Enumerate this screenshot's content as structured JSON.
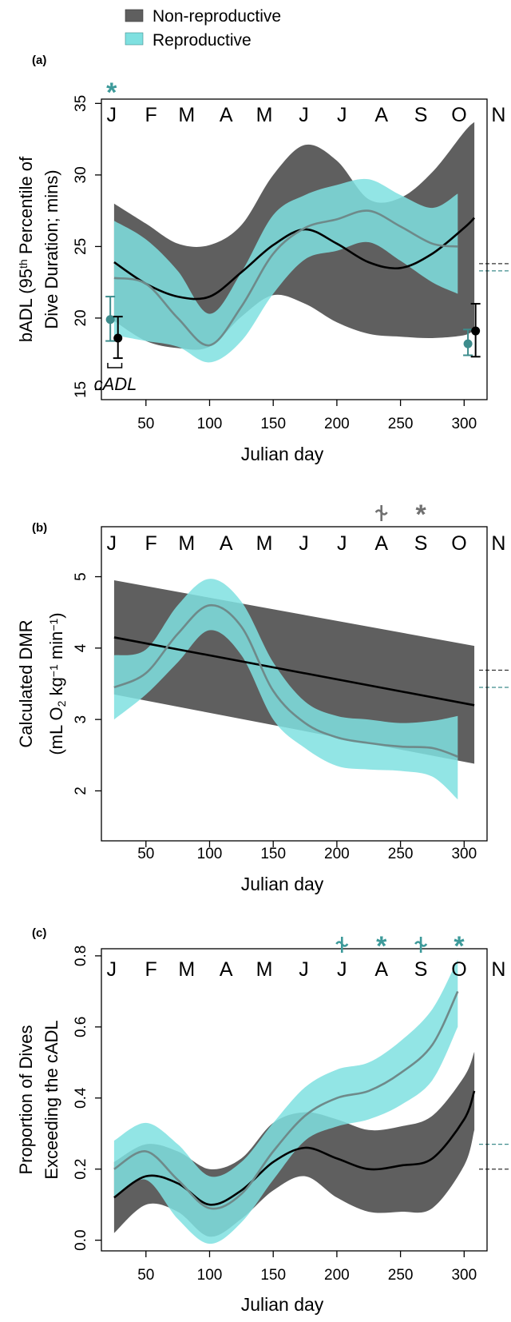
{
  "legend": {
    "items": [
      {
        "label": "Non-reproductive",
        "color": "#5f5f5f"
      },
      {
        "label": "Reproductive",
        "color": "#7fe0e0"
      }
    ]
  },
  "colors": {
    "nonrep_fill": "#5f5f5f",
    "rep_fill": "#7fe0e0",
    "nonrep_line": "#000000",
    "rep_line": "#6e8a8a",
    "rep_marker": "#3d8c8c",
    "sig_nonrep": "#707070",
    "sig_rep": "#3d9a9a"
  },
  "chart_data": [
    {
      "panel_label": "(a)",
      "type": "line",
      "xlabel": "Julian day",
      "ylabel": [
        "bADL (95th Percentile of",
        "Dive Duration; mins)"
      ],
      "xlim": [
        15,
        318
      ],
      "ylim": [
        14.3,
        35.3
      ],
      "xticks": [
        50,
        100,
        150,
        200,
        250,
        300
      ],
      "yticks": [
        15,
        20,
        25,
        30,
        35
      ],
      "months": [
        "J",
        "F",
        "M",
        "A",
        "M",
        "J",
        "J",
        "A",
        "S",
        "O",
        "N"
      ],
      "significance": [
        {
          "month_index": 0,
          "symbol": "*",
          "group": "Reproductive"
        }
      ],
      "reference_lines": [
        {
          "group": "Non-reproductive",
          "y": 23.8
        },
        {
          "group": "Reproductive",
          "y": 23.3
        }
      ],
      "series": [
        {
          "name": "Non-reproductive",
          "x": [
            25,
            50,
            75,
            100,
            125,
            150,
            175,
            200,
            225,
            250,
            275,
            300,
            308
          ],
          "y": [
            23.9,
            22.4,
            21.5,
            21.5,
            23.2,
            25.1,
            26.2,
            25.2,
            23.9,
            23.5,
            24.5,
            26.3,
            27.0
          ],
          "lower": [
            19.8,
            18.4,
            17.9,
            18.0,
            20.1,
            21.6,
            21.0,
            19.7,
            18.9,
            18.7,
            18.6,
            18.8,
            19.2
          ],
          "upper": [
            28.0,
            26.6,
            25.2,
            25.1,
            26.5,
            30.0,
            32.1,
            31.0,
            28.3,
            28.4,
            30.2,
            33.0,
            33.7
          ]
        },
        {
          "name": "Reproductive",
          "x": [
            25,
            50,
            75,
            100,
            125,
            150,
            175,
            200,
            225,
            250,
            275,
            295
          ],
          "y": [
            22.8,
            22.4,
            20.0,
            18.1,
            20.8,
            24.5,
            26.3,
            26.9,
            27.5,
            26.4,
            25.2,
            25.0
          ],
          "lower": [
            18.8,
            18.4,
            18.0,
            16.9,
            18.4,
            21.7,
            24.1,
            24.7,
            25.3,
            24.0,
            22.5,
            21.7
          ],
          "upper": [
            26.8,
            25.5,
            23.3,
            20.3,
            23.2,
            27.2,
            28.6,
            29.3,
            29.7,
            28.6,
            27.7,
            28.7
          ]
        }
      ],
      "cadl_label": "cADL",
      "cadl_points": [
        {
          "group": "Reproductive",
          "x": 22,
          "y": 19.9,
          "lower": 18.4,
          "upper": 21.5
        },
        {
          "group": "Non-reproductive",
          "x": 28,
          "y": 18.6,
          "lower": 17.2,
          "upper": 20.1
        },
        {
          "group": "Reproductive",
          "x": 303,
          "y": 18.2,
          "lower": 17.4,
          "upper": 19.2
        },
        {
          "group": "Non-reproductive",
          "x": 309,
          "y": 19.1,
          "lower": 17.3,
          "upper": 21.0
        }
      ]
    },
    {
      "panel_label": "(b)",
      "type": "line",
      "xlabel": "Julian day",
      "ylabel": [
        "Calculated DMR",
        "(mL O2 kg-1 min-1)"
      ],
      "xlim": [
        15,
        318
      ],
      "ylim": [
        1.3,
        5.7
      ],
      "xticks": [
        50,
        100,
        150,
        200,
        250,
        300
      ],
      "yticks": [
        2,
        3,
        4,
        5
      ],
      "months": [
        "J",
        "F",
        "M",
        "A",
        "M",
        "J",
        "J",
        "A",
        "S",
        "O",
        "N"
      ],
      "significance": [
        {
          "month_index": 7,
          "symbol": "dagger",
          "group": "Non-reproductive"
        },
        {
          "month_index": 8,
          "symbol": "*",
          "group": "Non-reproductive"
        }
      ],
      "reference_lines": [
        {
          "group": "Non-reproductive",
          "y": 3.69
        },
        {
          "group": "Reproductive",
          "y": 3.45
        }
      ],
      "series": [
        {
          "name": "Non-reproductive",
          "x": [
            25,
            308
          ],
          "y": [
            4.15,
            3.2
          ],
          "lower": [
            3.35,
            2.38
          ],
          "upper": [
            4.95,
            4.03
          ]
        },
        {
          "name": "Reproductive",
          "x": [
            25,
            50,
            75,
            100,
            125,
            150,
            175,
            200,
            225,
            250,
            275,
            295
          ],
          "y": [
            3.45,
            3.65,
            4.2,
            4.6,
            4.3,
            3.4,
            2.95,
            2.75,
            2.67,
            2.62,
            2.6,
            2.48
          ],
          "lower": [
            3.0,
            3.35,
            3.8,
            4.25,
            3.9,
            3.0,
            2.6,
            2.35,
            2.3,
            2.28,
            2.2,
            1.88
          ],
          "upper": [
            3.9,
            3.98,
            4.6,
            4.97,
            4.65,
            3.8,
            3.25,
            3.05,
            3.0,
            2.95,
            2.98,
            3.05
          ]
        }
      ]
    },
    {
      "panel_label": "(c)",
      "type": "line",
      "xlabel": "Julian day",
      "ylabel": [
        "Proportion of Dives",
        "Exceeding the cADL"
      ],
      "xlim": [
        15,
        318
      ],
      "ylim": [
        -0.03,
        0.82
      ],
      "xticks": [
        50,
        100,
        150,
        200,
        250,
        300
      ],
      "yticks": [
        0.0,
        0.2,
        0.4,
        0.6,
        0.8
      ],
      "ytick_labels": [
        "0.0",
        "0.2",
        "0.4",
        "0.6",
        "0.8"
      ],
      "months": [
        "J",
        "F",
        "M",
        "A",
        "M",
        "J",
        "J",
        "A",
        "S",
        "O",
        "N"
      ],
      "significance": [
        {
          "month_index": 6,
          "symbol": "dagger",
          "group": "Reproductive"
        },
        {
          "month_index": 7,
          "symbol": "*",
          "group": "Reproductive"
        },
        {
          "month_index": 8,
          "symbol": "dagger",
          "group": "Reproductive"
        },
        {
          "month_index": 9,
          "symbol": "*",
          "group": "Reproductive"
        }
      ],
      "reference_lines": [
        {
          "group": "Non-reproductive",
          "y": 0.2
        },
        {
          "group": "Reproductive",
          "y": 0.27
        }
      ],
      "series": [
        {
          "name": "Non-reproductive",
          "x": [
            25,
            50,
            75,
            100,
            125,
            150,
            175,
            200,
            225,
            250,
            275,
            300,
            308
          ],
          "y": [
            0.12,
            0.18,
            0.16,
            0.1,
            0.14,
            0.22,
            0.26,
            0.23,
            0.2,
            0.21,
            0.23,
            0.34,
            0.42
          ],
          "lower": [
            0.02,
            0.1,
            0.08,
            0.01,
            0.06,
            0.14,
            0.18,
            0.12,
            0.08,
            0.08,
            0.09,
            0.21,
            0.31
          ],
          "upper": [
            0.22,
            0.27,
            0.25,
            0.2,
            0.23,
            0.33,
            0.36,
            0.34,
            0.31,
            0.32,
            0.35,
            0.46,
            0.53
          ]
        },
        {
          "name": "Reproductive",
          "x": [
            25,
            50,
            75,
            100,
            125,
            150,
            175,
            200,
            225,
            250,
            275,
            295
          ],
          "y": [
            0.2,
            0.25,
            0.17,
            0.09,
            0.13,
            0.25,
            0.35,
            0.4,
            0.42,
            0.47,
            0.55,
            0.7
          ],
          "lower": [
            0.12,
            0.17,
            0.06,
            -0.01,
            0.05,
            0.17,
            0.28,
            0.32,
            0.34,
            0.38,
            0.45,
            0.6
          ],
          "upper": [
            0.28,
            0.33,
            0.27,
            0.18,
            0.22,
            0.33,
            0.43,
            0.48,
            0.5,
            0.56,
            0.65,
            0.79
          ]
        }
      ]
    }
  ]
}
